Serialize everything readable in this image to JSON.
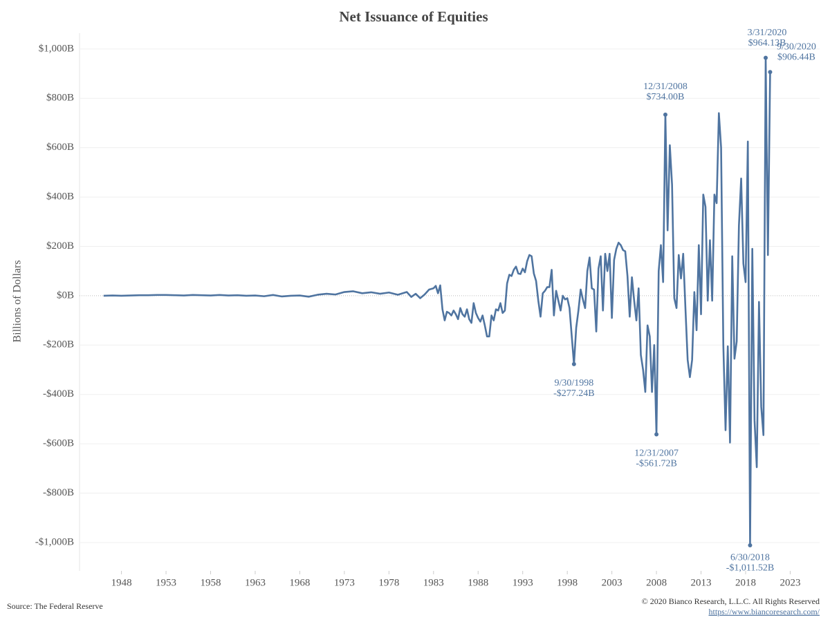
{
  "chart_data": {
    "type": "line",
    "title": "Net Issuance of Equities",
    "y_label": "Billions of Dollars",
    "source": "Source: The Federal Reserve",
    "copyright": "© 2020 Bianco Research, L.L.C. All Rights Reserved",
    "url": "https://www.biancoresearch.com/",
    "color": "#4f74a0",
    "grid": true,
    "xlim": [
      1943.3,
      2026.3
    ],
    "ylim": [
      -1115,
      1064
    ],
    "xticks": [
      1948,
      1953,
      1958,
      1963,
      1968,
      1973,
      1978,
      1983,
      1988,
      1993,
      1998,
      2003,
      2008,
      2013,
      2018,
      2023
    ],
    "yticks": [
      {
        "value": -1000,
        "label": "-$1,000B"
      },
      {
        "value": -800,
        "label": "-$800B"
      },
      {
        "value": -600,
        "label": "-$600B"
      },
      {
        "value": -400,
        "label": "-$400B"
      },
      {
        "value": -200,
        "label": "-$200B"
      },
      {
        "value": 0,
        "label": "$0B"
      },
      {
        "value": 200,
        "label": "$200B"
      },
      {
        "value": 400,
        "label": "$400B"
      },
      {
        "value": 600,
        "label": "$600B"
      },
      {
        "value": 800,
        "label": "$800B"
      },
      {
        "value": 1000,
        "label": "$1,000B"
      }
    ],
    "x": [
      1946,
      1947,
      1948,
      1949,
      1950,
      1951,
      1952,
      1953,
      1954,
      1955,
      1956,
      1957,
      1958,
      1959,
      1960,
      1961,
      1962,
      1963,
      1964,
      1965,
      1966,
      1967,
      1968,
      1969,
      1970,
      1971,
      1972,
      1973,
      1974,
      1975,
      1976,
      1977,
      1978,
      1979,
      1980,
      1980.5,
      1981,
      1981.5,
      1982,
      1982.5,
      1983,
      1983.25,
      1983.5,
      1983.75,
      1984,
      1984.25,
      1984.5,
      1984.75,
      1985,
      1985.25,
      1985.5,
      1985.75,
      1986,
      1986.25,
      1986.5,
      1986.75,
      1987,
      1987.25,
      1987.5,
      1987.75,
      1988,
      1988.25,
      1988.5,
      1988.75,
      1989,
      1989.25,
      1989.5,
      1989.75,
      1990,
      1990.25,
      1990.5,
      1990.75,
      1991,
      1991.25,
      1991.5,
      1991.75,
      1992,
      1992.25,
      1992.5,
      1992.75,
      1993,
      1993.25,
      1993.5,
      1993.75,
      1994,
      1994.25,
      1994.5,
      1994.75,
      1995,
      1995.25,
      1995.5,
      1995.75,
      1996,
      1996.25,
      1996.5,
      1996.75,
      1997,
      1997.25,
      1997.5,
      1997.75,
      1998,
      1998.25,
      1998.75,
      1999,
      1999.25,
      1999.5,
      1999.75,
      2000,
      2000.25,
      2000.5,
      2000.75,
      2001,
      2001.25,
      2001.5,
      2001.75,
      2002,
      2002.25,
      2002.5,
      2002.75,
      2003,
      2003.25,
      2003.5,
      2003.75,
      2004,
      2004.25,
      2004.5,
      2004.75,
      2005,
      2005.25,
      2005.5,
      2005.75,
      2006,
      2006.25,
      2006.5,
      2006.75,
      2007,
      2007.25,
      2007.5,
      2007.75,
      2008,
      2008.25,
      2008.5,
      2008.75,
      2009,
      2009.25,
      2009.5,
      2009.75,
      2010,
      2010.25,
      2010.5,
      2010.75,
      2011,
      2011.25,
      2011.5,
      2011.75,
      2012,
      2012.25,
      2012.5,
      2012.75,
      2013,
      2013.25,
      2013.5,
      2013.75,
      2014,
      2014.25,
      2014.5,
      2014.75,
      2015,
      2015.25,
      2015.5,
      2015.75,
      2016,
      2016.25,
      2016.5,
      2016.75,
      2017,
      2017.25,
      2017.5,
      2017.75,
      2018,
      2018.25,
      2018.5,
      2018.75,
      2019,
      2019.25,
      2019.5,
      2019.75,
      2020,
      2020.25,
      2020.5,
      2020.75
    ],
    "values": [
      0,
      1,
      0,
      1,
      2,
      2,
      3,
      3,
      2,
      1,
      3,
      2,
      1,
      3,
      1,
      2,
      0,
      1,
      -2,
      3,
      -3,
      0,
      1,
      -4,
      4,
      8,
      5,
      15,
      18,
      10,
      14,
      8,
      13,
      4,
      15,
      -5,
      8,
      -10,
      5,
      25,
      30,
      40,
      10,
      42,
      -55,
      -100,
      -65,
      -70,
      -80,
      -60,
      -75,
      -95,
      -50,
      -75,
      -85,
      -55,
      -95,
      -110,
      -30,
      -70,
      -90,
      -105,
      -80,
      -120,
      -165,
      -165,
      -80,
      -100,
      -55,
      -60,
      -30,
      -70,
      -60,
      50,
      85,
      80,
      105,
      118,
      90,
      88,
      110,
      95,
      140,
      165,
      160,
      90,
      60,
      -20,
      -85,
      10,
      20,
      35,
      35,
      105,
      -80,
      20,
      -20,
      -60,
      0,
      -15,
      -10,
      -50,
      -277.24,
      -130,
      -60,
      25,
      -15,
      -50,
      100,
      155,
      30,
      25,
      -145,
      110,
      160,
      -60,
      170,
      100,
      170,
      -90,
      145,
      190,
      215,
      205,
      185,
      180,
      80,
      -85,
      75,
      -20,
      -100,
      30,
      -240,
      -300,
      -390,
      -120,
      -165,
      -390,
      -200,
      -561.72,
      100,
      205,
      55,
      734.0,
      265,
      610,
      450,
      -10,
      -50,
      165,
      70,
      170,
      -50,
      -260,
      -330,
      -260,
      15,
      -140,
      205,
      -75,
      410,
      360,
      -20,
      225,
      -20,
      410,
      375,
      740,
      600,
      -200,
      -545,
      -205,
      -595,
      160,
      -255,
      -185,
      285,
      475,
      130,
      55,
      625,
      -1011.52,
      190,
      -505,
      -695,
      -25,
      -450,
      -565,
      964.13,
      165,
      906.44
    ],
    "annotations": [
      {
        "date": "9/30/1998",
        "label": "-$277.24B",
        "x": 1998.75,
        "value": -277.24
      },
      {
        "date": "12/31/2007",
        "label": "-$561.72B",
        "x": 2008.0,
        "value": -561.72
      },
      {
        "date": "12/31/2008",
        "label": "$734.00B",
        "x": 2009.0,
        "value": 734.0
      },
      {
        "date": "6/30/2018",
        "label": "-$1,011.52B",
        "x": 2018.5,
        "value": -1011.52
      },
      {
        "date": "3/31/2020",
        "label": "$964.13B",
        "x": 2020.25,
        "value": 964.13
      },
      {
        "date": "9/30/2020",
        "label": "$906.44B",
        "x": 2020.75,
        "value": 906.44
      }
    ]
  }
}
